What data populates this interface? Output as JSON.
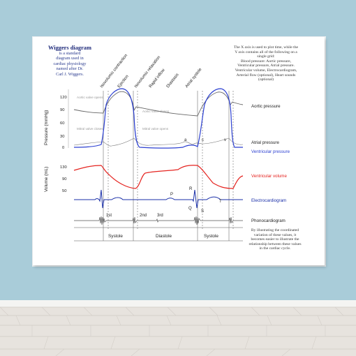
{
  "heading": {
    "title": "Wiggers diagram",
    "subtitle_lines": [
      "is a standard",
      "diagram used in",
      "cardiac physiology",
      "named after Dr.",
      "Carl J. Wiggers."
    ]
  },
  "note_top": [
    "The X axis is used to plot time, while the",
    "Y axis contains all of the following on a",
    "single grid:",
    "Blood pressure: Aortic pressure,",
    "Ventricular pressure, Atrial pressure.",
    "Ventricular volume, Electrocardiogram,",
    "Arterial flow (optional), Heart sounds",
    "(optional)"
  ],
  "note_bottom": [
    "By illustrating the coordinated",
    "variation of these values, it",
    "becomes easier to illustrate the",
    "relationship between these values",
    "in the cardiac cycle."
  ],
  "phases": [
    "Isovolumic contraction",
    "Ejection",
    "Isovolumic relaxation",
    "Rapid inflow",
    "Diastasis",
    "Atrial systole"
  ],
  "valve_labels": {
    "aortic_opens": "Aortic valve opens",
    "aortic_closes": "Aortic valve closes",
    "mitral_closes": "Mitral valve closes",
    "mitral_opens": "Mitral valve opens"
  },
  "pressure_axis": {
    "label": "Pressure (mmHg)",
    "ticks": [
      "120",
      "90",
      "60",
      "30",
      "0"
    ]
  },
  "volume_axis": {
    "label": "Volume (mL)",
    "ticks": [
      "130",
      "90",
      "50"
    ]
  },
  "wave_labels": {
    "a": "a",
    "c": "c",
    "v": "v",
    "P": "P",
    "Q": "Q",
    "R": "R",
    "S": "S",
    "T": "T"
  },
  "sound_labels": [
    "1st",
    "2nd",
    "3rd"
  ],
  "cycle_labels": [
    "Systole",
    "Diastole",
    "Systole"
  ],
  "series": [
    {
      "name": "Aortic pressure",
      "color": "#222222"
    },
    {
      "name": "Atrial pressure",
      "color": "#222222"
    },
    {
      "name": "Ventricular pressure",
      "color": "#2233cc"
    },
    {
      "name": "Ventricular volume",
      "color": "#e02020"
    },
    {
      "name": "Electrocardiogram",
      "color": "#1a2fa8"
    },
    {
      "name": "Phonocardiogram",
      "color": "#222222"
    }
  ],
  "colors": {
    "wall": "#a9ccd9",
    "floor": "#e8e4df",
    "blue": "#2b3fd1",
    "red": "#e5231f",
    "grey": "#888888"
  }
}
